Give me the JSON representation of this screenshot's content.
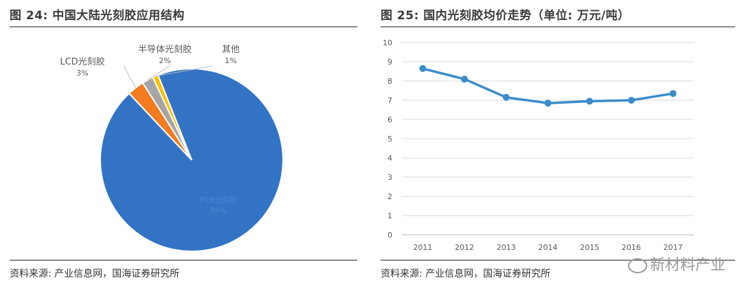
{
  "colors": {
    "blue": "#3373c4",
    "orange": "#f47b20",
    "gray": "#a5a5a5",
    "yellow": "#ffc000",
    "line": "#3a8cc9",
    "grid": "#d9d9d9"
  },
  "left": {
    "title": "图 24:  中国大陆光刻胶应用结构",
    "source": "资料来源:  产业信息网，国海证券研究所"
  },
  "right": {
    "title": "图 25:  国内光刻胶均价走势（单位:  万元/吨）",
    "source": "资料来源:  产业信息网，国海证券研究所"
  },
  "watermark": "新材料产业",
  "chart_data": [
    {
      "type": "pie",
      "slices": [
        {
          "label": "PCB光刻胶",
          "value": 94,
          "pct_text": "94%",
          "color": "#3373c4"
        },
        {
          "label": "LCD光刻胶",
          "value": 3,
          "pct_text": "3%",
          "color": "#f47b20"
        },
        {
          "label": "半导体光刻胶",
          "value": 2,
          "pct_text": "2%",
          "color": "#a5a5a5"
        },
        {
          "label": "其他",
          "value": 1,
          "pct_text": "1%",
          "color": "#ffc000"
        }
      ]
    },
    {
      "type": "line",
      "x": [
        "2011",
        "2012",
        "2013",
        "2014",
        "2015",
        "2016",
        "2017"
      ],
      "series": [
        {
          "values": [
            8.65,
            8.1,
            7.15,
            6.85,
            6.95,
            7.0,
            7.35
          ]
        }
      ],
      "ylim": [
        0,
        10
      ],
      "yticks": [
        "0",
        "1",
        "2",
        "3",
        "4",
        "5",
        "6",
        "7",
        "8",
        "9",
        "10"
      ],
      "grid": true
    }
  ]
}
